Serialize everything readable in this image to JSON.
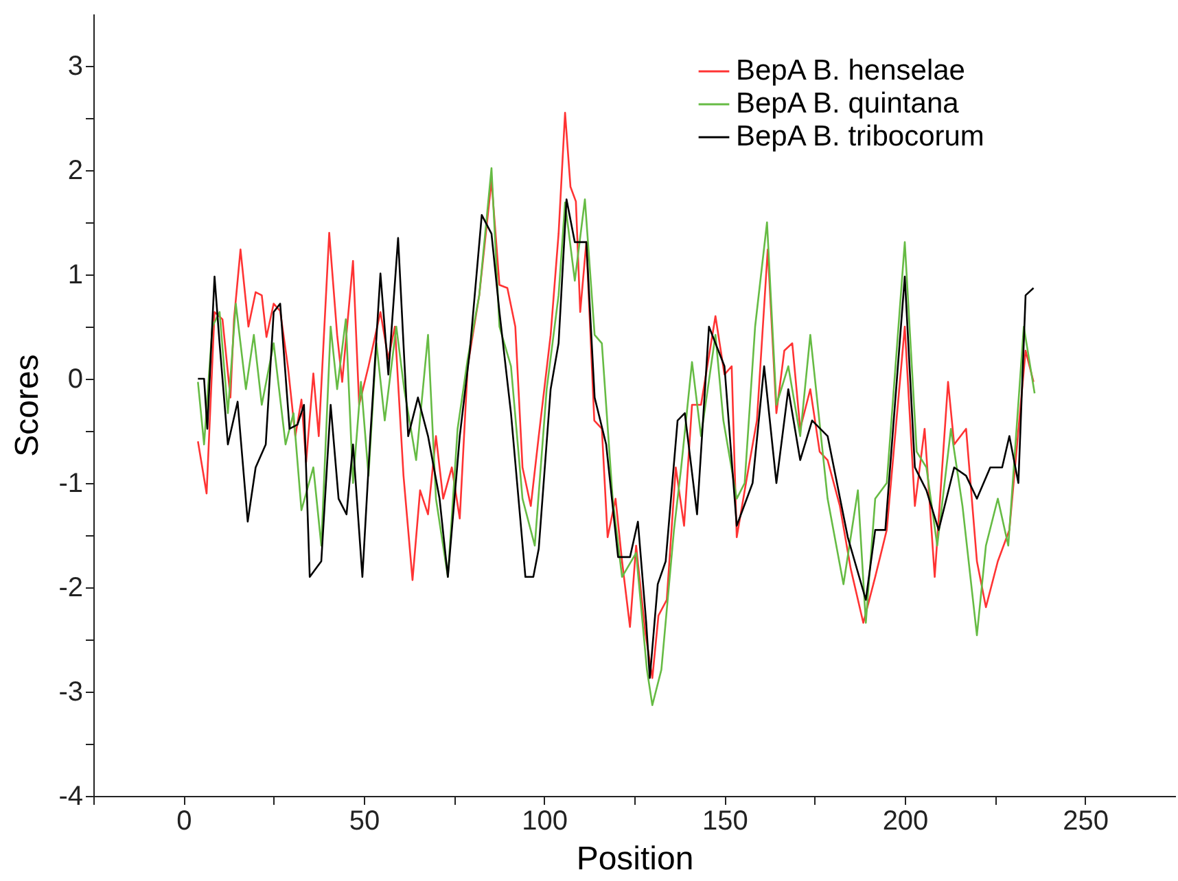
{
  "chart_data": {
    "type": "line",
    "xlabel": "Position",
    "ylabel": "Scores",
    "xlim": [
      -25,
      275
    ],
    "ylim": [
      -4,
      3.5
    ],
    "xticks": [
      {
        "value": -25,
        "label": null
      },
      0,
      {
        "value": 25,
        "label": null
      },
      50,
      {
        "value": 75,
        "label": null
      },
      100,
      {
        "value": 125,
        "label": null
      },
      150,
      {
        "value": 175,
        "label": null
      },
      200,
      {
        "value": 225,
        "label": null
      },
      250
    ],
    "yticks": [
      -4,
      {
        "value": -3.5,
        "label": null
      },
      -3,
      {
        "value": -2.5,
        "label": null
      },
      -2,
      {
        "value": -1.5,
        "label": null
      },
      -1,
      {
        "value": -0.5,
        "label": null
      },
      0,
      {
        "value": 0.5,
        "label": null
      },
      1,
      {
        "value": 1.5,
        "label": null
      },
      2,
      {
        "value": 2.5,
        "label": null
      },
      3
    ],
    "grid": false,
    "legend": "top right",
    "marker": "none",
    "line_style": "solid",
    "series": [
      {
        "name": "BepA B. henselae",
        "color": "#ff3333",
        "x": [
          4,
          6.4,
          8.6,
          10.8,
          13,
          14,
          15.8,
          18,
          20,
          21.7,
          23,
          25,
          26.8,
          29,
          31,
          32.7,
          34,
          36,
          37.5,
          40.4,
          42.6,
          44,
          47,
          48.7,
          51.3,
          54.6,
          56.8,
          58.6,
          61,
          63.5,
          65.6,
          67.8,
          70,
          72,
          74.4,
          76.6,
          78.8,
          82,
          85.4,
          87.6,
          89.8,
          92,
          94,
          96.3,
          98.5,
          101.8,
          104,
          105.8,
          107.3,
          108.8,
          110,
          111.7,
          113.9,
          116,
          117.6,
          119.8,
          121.6,
          123.8,
          125.5,
          128,
          130,
          131.7,
          134,
          136.5,
          138.8,
          141,
          143.5,
          147.5,
          150,
          152,
          153.4,
          156.7,
          159,
          162,
          164.4,
          166.6,
          168.8,
          171,
          173.8,
          176.4,
          178.6,
          182,
          185,
          188.5,
          191.8,
          195,
          200,
          202.8,
          205.5,
          208.3,
          212,
          213.7,
          217,
          220,
          222.5,
          225.8,
          229,
          233.5,
          235.7
        ],
        "values": [
          -0.6,
          -1.1,
          0.64,
          0.57,
          -0.18,
          0.57,
          1.24,
          0.5,
          0.83,
          0.8,
          0.4,
          0.72,
          0.65,
          0.1,
          -0.55,
          -0.2,
          -0.8,
          0.05,
          -0.55,
          1.4,
          0.42,
          -0.03,
          1.13,
          -0.25,
          0.12,
          0.64,
          0.19,
          0.5,
          -0.93,
          -1.93,
          -1.07,
          -1.3,
          -0.55,
          -1.15,
          -0.85,
          -1.34,
          0.12,
          0.8,
          1.9,
          0.9,
          0.87,
          0.5,
          -0.85,
          -1.22,
          -0.55,
          0.42,
          1.39,
          2.55,
          1.84,
          1.7,
          0.64,
          1.31,
          -0.4,
          -0.48,
          -1.52,
          -1.15,
          -1.75,
          -2.38,
          -1.6,
          -2.42,
          -2.87,
          -2.27,
          -2.12,
          -0.85,
          -1.41,
          -0.25,
          -0.25,
          0.6,
          0.04,
          0.12,
          -1.52,
          -0.85,
          -0.4,
          1.24,
          -0.33,
          0.27,
          0.34,
          -0.48,
          -0.1,
          -0.7,
          -0.78,
          -1.22,
          -1.82,
          -2.34,
          -1.9,
          -1.45,
          0.5,
          -1.22,
          -0.48,
          -1.9,
          -0.03,
          -0.63,
          -0.48,
          -1.75,
          -2.19,
          -1.75,
          -1.45,
          0.27,
          -0.03
        ]
      },
      {
        "name": "BepA B. quintana",
        "color": "#66bb44",
        "x": [
          4,
          5.7,
          8,
          10,
          12.3,
          14.5,
          17.3,
          19.5,
          21.7,
          25,
          28.3,
          30.5,
          32.7,
          36,
          38.2,
          40.8,
          42.6,
          45,
          47,
          49.2,
          51.3,
          53.5,
          55.8,
          59,
          61.2,
          64.5,
          67.8,
          70,
          73.3,
          76,
          78.8,
          82,
          85.4,
          87.6,
          90.8,
          94,
          97.4,
          100.7,
          104,
          105.8,
          108.5,
          111.3,
          114,
          116,
          119,
          121.6,
          125.5,
          128.5,
          130,
          132.5,
          136,
          138,
          141,
          143.5,
          147.5,
          149.7,
          153.4,
          155.6,
          158.5,
          161.8,
          164.4,
          167.7,
          171,
          173.8,
          178.6,
          183,
          187,
          189.2,
          191.8,
          195,
          200,
          203.3,
          206,
          209,
          212.8,
          216,
          220,
          222.5,
          225.8,
          228.7,
          233,
          236
        ],
        "values": [
          -0.03,
          -0.63,
          0.5,
          0.64,
          -0.33,
          0.72,
          -0.1,
          0.42,
          -0.25,
          0.34,
          -0.63,
          -0.33,
          -1.26,
          -0.85,
          -1.6,
          0.5,
          -0.1,
          0.57,
          -1.0,
          -0.03,
          -0.93,
          0.34,
          -0.4,
          0.5,
          -0.1,
          -0.78,
          0.42,
          -1.15,
          -1.9,
          -0.48,
          0.19,
          0.8,
          2.02,
          0.5,
          0.12,
          -1.15,
          -1.6,
          -0.1,
          0.8,
          1.69,
          0.94,
          1.72,
          0.42,
          0.34,
          -1.15,
          -1.9,
          -1.67,
          -2.79,
          -3.13,
          -2.79,
          -1.45,
          -0.85,
          0.16,
          -0.55,
          0.42,
          -0.4,
          -1.15,
          -1.0,
          0.5,
          1.5,
          -0.25,
          0.12,
          -0.55,
          0.42,
          -1.15,
          -1.97,
          -1.07,
          -2.34,
          -1.15,
          -1.0,
          1.31,
          -0.7,
          -0.85,
          -1.6,
          -0.48,
          -1.22,
          -2.46,
          -1.6,
          -1.15,
          -1.6,
          0.5,
          -0.14
        ]
      },
      {
        "name": "BepA B. tribocorum",
        "color": "#000000",
        "x": [
          4,
          5.7,
          6.6,
          8.6,
          10,
          12.3,
          15,
          17.8,
          20,
          22.8,
          25,
          26.8,
          29.4,
          31.6,
          33.4,
          35,
          38.2,
          40.8,
          43,
          45.2,
          47,
          49.6,
          51.8,
          54.6,
          56.8,
          59.5,
          62.3,
          65,
          67.8,
          71,
          73.3,
          76.6,
          79.4,
          82.7,
          85.4,
          87.6,
          90.8,
          94.8,
          97,
          98.5,
          101.8,
          104,
          106.2,
          108.5,
          111.7,
          114,
          117.2,
          120.5,
          123.8,
          126,
          128.3,
          129.3,
          131.5,
          133.7,
          137,
          139,
          142.4,
          145.7,
          150,
          153.4,
          157.8,
          161,
          164.4,
          167.7,
          171,
          174.3,
          178.6,
          184.2,
          189.2,
          191.8,
          194.6,
          200,
          202.8,
          206,
          209.4,
          213.7,
          217,
          220,
          223.7,
          227,
          229,
          231.5,
          233.5,
          235.7
        ],
        "values": [
          0,
          0,
          -0.48,
          0.98,
          0.34,
          -0.63,
          -0.22,
          -1.37,
          -0.85,
          -0.63,
          0.64,
          0.72,
          -0.48,
          -0.44,
          -0.25,
          -1.9,
          -1.75,
          -0.25,
          -1.15,
          -1.3,
          -0.63,
          -1.9,
          -0.55,
          1.01,
          0.04,
          1.35,
          -0.55,
          -0.18,
          -0.55,
          -1.15,
          -1.9,
          -0.55,
          0.27,
          1.57,
          1.39,
          0.64,
          -0.33,
          -1.9,
          -1.9,
          -1.63,
          -0.1,
          0.34,
          1.72,
          1.31,
          1.31,
          -0.18,
          -0.63,
          -1.71,
          -1.71,
          -1.37,
          -2.34,
          -2.87,
          -1.97,
          -1.75,
          -0.4,
          -0.33,
          -1.3,
          0.5,
          0.12,
          -1.41,
          -1.0,
          0.12,
          -1.0,
          -0.1,
          -0.78,
          -0.4,
          -0.55,
          -1.52,
          -2.12,
          -1.45,
          -1.45,
          0.98,
          -0.85,
          -1.07,
          -1.45,
          -0.85,
          -0.93,
          -1.15,
          -0.85,
          -0.85,
          -0.55,
          -1.0,
          0.8,
          0.87
        ]
      }
    ]
  }
}
